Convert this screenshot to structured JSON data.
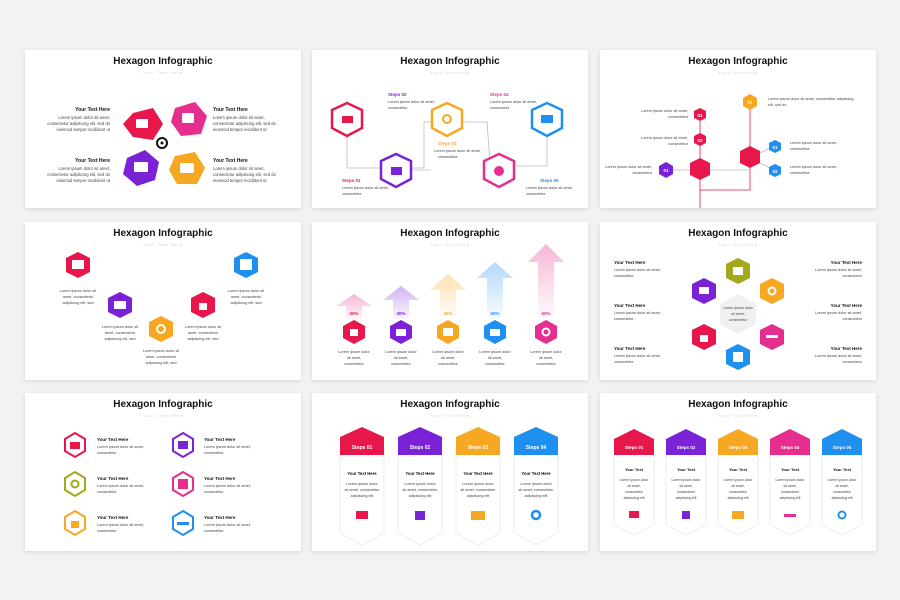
{
  "colors": {
    "red": "#e8174b",
    "pink": "#e52e8e",
    "purple": "#7a23d6",
    "orange": "#f7a823",
    "blue": "#1f8ff0",
    "olive": "#a3a81c",
    "gray": "#666666"
  },
  "slides": [
    {
      "title": "Hexagon Infographic",
      "subtitle": "Your Text Here"
    },
    {
      "title": "Hexagon Infographic",
      "subtitle": "Your Text Here"
    },
    {
      "title": "Hexagon Infographic",
      "subtitle": "Your Text Here"
    },
    {
      "title": "Hexagon Infographic",
      "subtitle": "Your Text Here"
    },
    {
      "title": "Hexagon Infographic",
      "subtitle": "Your Text Here"
    },
    {
      "title": "Hexagon Infographic",
      "subtitle": "Your Text Here"
    },
    {
      "title": "Hexagon Infographic",
      "subtitle": "Your Text Here"
    },
    {
      "title": "Hexagon Infographic",
      "subtitle": "Your Text Here"
    },
    {
      "title": "Hexagon Infographic",
      "subtitle": "Your Text Here"
    }
  ],
  "s1": {
    "heading": "Your Text Here",
    "l1": "Lorem ipsum dolor sit amet,",
    "l2": "consectetur adipiscing elit, sed do",
    "l3": "eiusmod tempor incididunt ut"
  },
  "s2": {
    "step1": "Steps 01",
    "step2": "Steps 02",
    "step3": "Steps 03",
    "step4": "Steps 04",
    "step5": "Steps 05",
    "l1": "Lorem ipsum dolor sit amet,",
    "l2": "consectetur"
  },
  "s3": {
    "n1": "01",
    "n2": "02",
    "n3": "03",
    "l1": "Lorem ipsum dolor sit amet, consectetur adipiscing",
    "l2": "elit, sed do",
    "l3": "Lorem ipsum dolor sit amet,",
    "l4": "consectetur"
  },
  "s4": {
    "l1": "Lorem ipsum dolor sit",
    "l2": "amet, consectetur",
    "l3": "adipiscing elit, sed"
  },
  "s5": {
    "p1": "30%",
    "p2": "30%",
    "p3": "40%",
    "p4": "50%",
    "p5": "60%",
    "l1": "Lorem ipsum dolor",
    "l2": "sit amet,",
    "l3": "consectetur"
  },
  "s6": {
    "heading": "Your Text Here",
    "l1": "Lorem ipsum dolor sit amet,",
    "l2": "consectetur",
    "c1": "Lorem ipsum dolor",
    "c2": "sit amet,",
    "c3": "consectetur"
  },
  "s7": {
    "heading": "Your Text Here",
    "l1": "Lorem ipsum dolor sit amet,",
    "l2": "consectetur"
  },
  "s8": {
    "steps": [
      "Steps 01",
      "Steps 02",
      "Steps 03",
      "Steps 04"
    ],
    "heading": "Your Text Here",
    "l1": "Lorem ipsum dolor",
    "l2": "sit amet, consectetur",
    "l3": "adipiscing elit"
  },
  "s9": {
    "steps": [
      "Steps 01",
      "Steps 02",
      "Steps 03",
      "Steps 04",
      "Steps 05"
    ],
    "heading": "Your Text",
    "l1": "Lorem ipsum dolor",
    "l2": "sit amet,",
    "l3": "consectetur",
    "l4": "adipiscing elit"
  }
}
